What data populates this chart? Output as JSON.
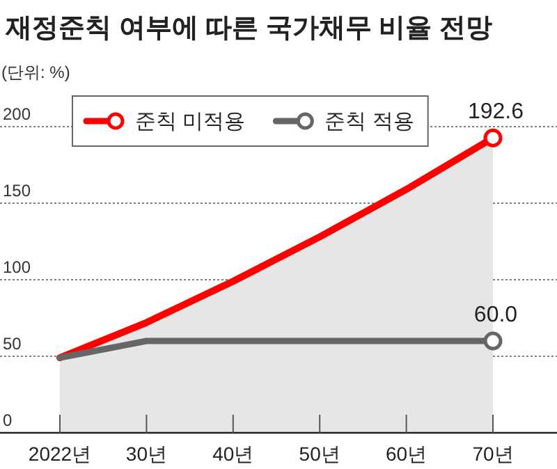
{
  "chart_data": {
    "type": "line",
    "title": "재정준칙 여부에 따른 국가채무 비율 전망",
    "subtitle": "(단위: %)",
    "categories": [
      "2022년",
      "30년",
      "40년",
      "50년",
      "60년",
      "70년"
    ],
    "series": [
      {
        "name": "준칙 미적용",
        "type": "area",
        "color": "#ff0000",
        "values": [
          49,
          72,
          99,
          128,
          159,
          192.6
        ],
        "value_labels": [
          null,
          null,
          null,
          null,
          null,
          "192.6"
        ]
      },
      {
        "name": "준칙 적용",
        "color": "#666666",
        "values": [
          49,
          60,
          60,
          60,
          60,
          60.0
        ],
        "value_labels": [
          null,
          null,
          null,
          null,
          null,
          "60.0"
        ]
      }
    ],
    "ylim": [
      0,
      200
    ],
    "yticks": [
      0,
      50,
      100,
      150,
      200
    ],
    "grid": "y",
    "legend": "top left"
  }
}
